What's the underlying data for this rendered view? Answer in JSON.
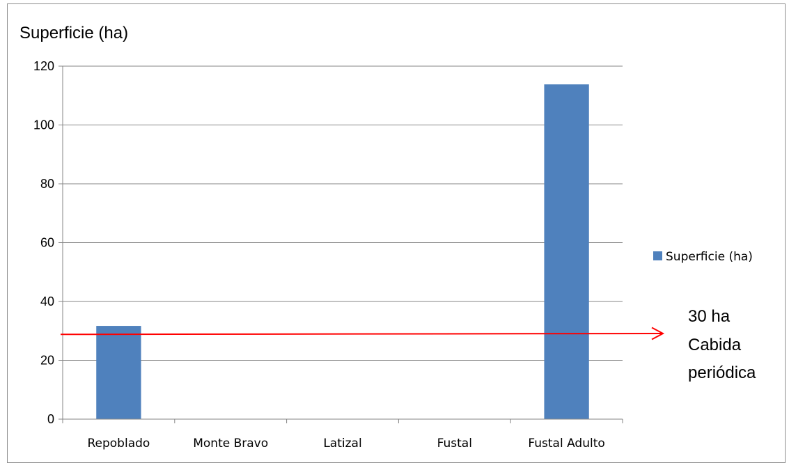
{
  "chart_data": {
    "type": "bar",
    "title": "Superficie (ha)",
    "categories": [
      "Repoblado",
      "Monte Bravo",
      "Latizal",
      "Fustal",
      "Fustal Adulto"
    ],
    "series": [
      {
        "name": "Superficie (ha)",
        "values": [
          31.7,
          0,
          0,
          0,
          113.8
        ],
        "color": "#4f81bd"
      }
    ],
    "ylim": [
      0,
      120
    ],
    "yticks": [
      0,
      20,
      40,
      60,
      80,
      100,
      120
    ],
    "grid": true,
    "legend": "right",
    "reference_line": {
      "value": 29,
      "color": "#ff0000"
    },
    "annotation": [
      "30 ha",
      "Cabida",
      "periódica"
    ]
  }
}
